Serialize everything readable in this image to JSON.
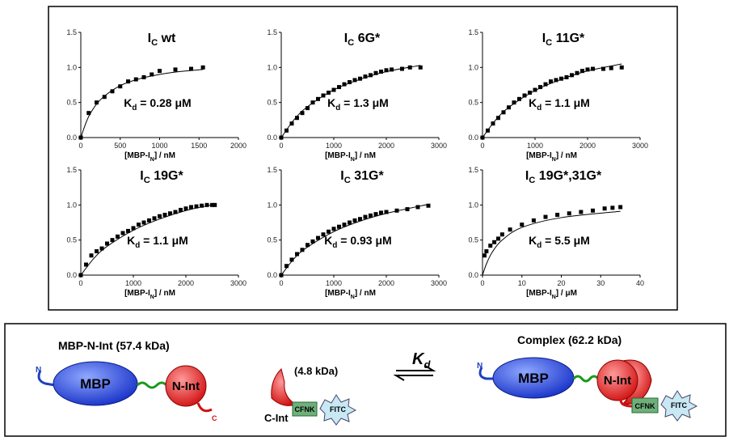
{
  "chart_data": [
    {
      "type": "scatter",
      "title": [
        "I",
        "C",
        " wt"
      ],
      "kd_label": [
        "K",
        "d",
        " = 0.28 μM"
      ],
      "xlabel": [
        "[MBP-I",
        "N",
        "] / nM"
      ],
      "xlim": [
        0,
        2000
      ],
      "xticks": [
        0,
        500,
        1000,
        1500,
        2000
      ],
      "ylim": [
        0,
        1.5
      ],
      "yticks": [
        {
          "value": 0,
          "label": "0.0"
        },
        0.5,
        {
          "value": 1,
          "label": "1.0"
        },
        1.5
      ],
      "points": {
        "x": [
          0,
          100,
          200,
          300,
          400,
          500,
          600,
          700,
          800,
          900,
          1000,
          1200,
          1400,
          1550
        ],
        "y": [
          0,
          0.35,
          0.5,
          0.58,
          0.66,
          0.73,
          0.8,
          0.83,
          0.86,
          0.9,
          0.95,
          0.97,
          0.98,
          1.0
        ]
      },
      "fit": {
        "x": [
          0,
          100,
          250,
          500,
          750,
          1000,
          1250,
          1550
        ],
        "y": [
          0,
          0.3,
          0.54,
          0.74,
          0.84,
          0.9,
          0.94,
          0.97
        ]
      },
      "color": "#000000"
    },
    {
      "type": "scatter",
      "title": [
        "I",
        "C",
        " 6G*"
      ],
      "kd_label": [
        "K",
        "d",
        " = 1.3 μM"
      ],
      "xlabel": [
        "[MBP-I",
        "N",
        "] / nM"
      ],
      "xlim": [
        0,
        3000
      ],
      "xticks": [
        0,
        1000,
        2000,
        3000
      ],
      "ylim": [
        0,
        1.5
      ],
      "yticks": [
        {
          "value": 0,
          "label": "0.0"
        },
        0.5,
        {
          "value": 1,
          "label": "1.0"
        },
        1.5
      ],
      "points": {
        "x": [
          0,
          100,
          200,
          300,
          400,
          500,
          600,
          700,
          800,
          900,
          1000,
          1100,
          1200,
          1300,
          1400,
          1500,
          1600,
          1700,
          1800,
          1900,
          2000,
          2100,
          2300,
          2450,
          2650
        ],
        "y": [
          0,
          0.1,
          0.2,
          0.28,
          0.35,
          0.42,
          0.5,
          0.55,
          0.6,
          0.64,
          0.68,
          0.72,
          0.76,
          0.79,
          0.82,
          0.84,
          0.87,
          0.89,
          0.92,
          0.94,
          0.96,
          0.97,
          0.98,
          1.0,
          1.0
        ]
      },
      "fit": {
        "x": [
          0,
          250,
          500,
          1000,
          1500,
          2000,
          2650
        ],
        "y": [
          0,
          0.26,
          0.44,
          0.68,
          0.83,
          0.94,
          1.03
        ]
      },
      "color": "#000000"
    },
    {
      "type": "scatter",
      "title": [
        "I",
        "C",
        " 11G*"
      ],
      "kd_label": [
        "K",
        "d",
        " = 1.1 μM"
      ],
      "xlabel": [
        "[MBP-I",
        "N",
        "] / nM"
      ],
      "xlim": [
        0,
        3000
      ],
      "xticks": [
        0,
        1000,
        2000,
        3000
      ],
      "ylim": [
        0,
        1.5
      ],
      "yticks": [
        {
          "value": 0,
          "label": "0.0"
        },
        0.5,
        {
          "value": 1,
          "label": "1.0"
        },
        1.5
      ],
      "points": {
        "x": [
          0,
          100,
          200,
          300,
          400,
          500,
          600,
          700,
          800,
          900,
          1000,
          1100,
          1200,
          1300,
          1400,
          1500,
          1600,
          1700,
          1800,
          1900,
          2000,
          2100,
          2300,
          2450,
          2650
        ],
        "y": [
          0,
          0.1,
          0.2,
          0.28,
          0.36,
          0.43,
          0.5,
          0.55,
          0.6,
          0.64,
          0.68,
          0.72,
          0.76,
          0.8,
          0.82,
          0.84,
          0.86,
          0.89,
          0.92,
          0.95,
          0.97,
          0.98,
          0.98,
          0.99,
          1.0
        ]
      },
      "fit": {
        "x": [
          0,
          250,
          500,
          1000,
          1500,
          2000,
          2650
        ],
        "y": [
          0,
          0.25,
          0.43,
          0.67,
          0.83,
          0.95,
          1.05
        ]
      },
      "color": "#000000"
    },
    {
      "type": "scatter",
      "title": [
        "I",
        "C",
        " 19G*"
      ],
      "kd_label": [
        "K",
        "d",
        " = 1.1 μM"
      ],
      "xlabel": [
        "[MBP-I",
        "N",
        "] / nM"
      ],
      "xlim": [
        0,
        3000
      ],
      "xticks": [
        0,
        1000,
        2000,
        3000
      ],
      "ylim": [
        0,
        1.5
      ],
      "yticks": [
        {
          "value": 0,
          "label": "0.0"
        },
        0.5,
        {
          "value": 1,
          "label": "1.0"
        },
        1.5
      ],
      "points": {
        "x": [
          0,
          100,
          200,
          300,
          400,
          500,
          600,
          700,
          800,
          900,
          1000,
          1100,
          1200,
          1300,
          1400,
          1500,
          1600,
          1700,
          1800,
          1900,
          2000,
          2100,
          2200,
          2300,
          2400,
          2500,
          2550
        ],
        "y": [
          0,
          0.15,
          0.28,
          0.34,
          0.38,
          0.45,
          0.5,
          0.55,
          0.6,
          0.63,
          0.67,
          0.72,
          0.75,
          0.78,
          0.81,
          0.84,
          0.86,
          0.88,
          0.9,
          0.93,
          0.95,
          0.97,
          0.98,
          0.99,
          1.0,
          1.0,
          1.0
        ]
      },
      "fit": {
        "x": [
          0,
          250,
          500,
          1000,
          1500,
          2000,
          2550
        ],
        "y": [
          0,
          0.24,
          0.41,
          0.64,
          0.8,
          0.92,
          1.01
        ]
      },
      "color": "#000000"
    },
    {
      "type": "scatter",
      "title": [
        "I",
        "C",
        " 31G*"
      ],
      "kd_label": [
        "K",
        "d",
        " = 0.93 μM"
      ],
      "xlabel": [
        "[MBP-I",
        "N",
        "] / nM"
      ],
      "xlim": [
        0,
        3000
      ],
      "xticks": [
        0,
        1000,
        2000,
        3000
      ],
      "ylim": [
        0,
        1.5
      ],
      "yticks": [
        {
          "value": 0,
          "label": "0.0"
        },
        0.5,
        {
          "value": 1,
          "label": "1.0"
        },
        1.5
      ],
      "points": {
        "x": [
          0,
          100,
          200,
          300,
          400,
          500,
          600,
          700,
          800,
          900,
          1000,
          1100,
          1200,
          1300,
          1400,
          1500,
          1600,
          1700,
          1800,
          1900,
          2000,
          2200,
          2400,
          2600,
          2800
        ],
        "y": [
          0,
          0.13,
          0.22,
          0.3,
          0.36,
          0.43,
          0.48,
          0.53,
          0.58,
          0.62,
          0.66,
          0.69,
          0.72,
          0.75,
          0.78,
          0.8,
          0.83,
          0.85,
          0.87,
          0.89,
          0.9,
          0.92,
          0.94,
          0.97,
          0.99
        ]
      },
      "fit": {
        "x": [
          0,
          250,
          500,
          1000,
          1500,
          2000,
          2800
        ],
        "y": [
          0,
          0.24,
          0.4,
          0.62,
          0.77,
          0.88,
          1.01
        ]
      },
      "color": "#000000"
    },
    {
      "type": "scatter",
      "title": [
        "I",
        "C",
        " 19G*,31G*"
      ],
      "kd_label": [
        "K",
        "d",
        " = 5.5 μM"
      ],
      "xlabel": [
        "[MBP-I",
        "N",
        "] / μM"
      ],
      "xlim": [
        0,
        40
      ],
      "xticks": [
        0,
        10,
        20,
        30,
        40
      ],
      "ylim": [
        0,
        1.5
      ],
      "yticks": [
        {
          "value": 0,
          "label": "0.0"
        },
        0.5,
        {
          "value": 1,
          "label": "1.0"
        },
        1.5
      ],
      "points": {
        "x": [
          0.5,
          1,
          2,
          3,
          4,
          5,
          7,
          10,
          13,
          16,
          19,
          22,
          25,
          28,
          31,
          33,
          35
        ],
        "y": [
          0.28,
          0.34,
          0.42,
          0.47,
          0.52,
          0.58,
          0.65,
          0.72,
          0.78,
          0.83,
          0.86,
          0.88,
          0.9,
          0.92,
          0.95,
          0.96,
          0.97
        ]
      },
      "fit": {
        "x": [
          0,
          1,
          2.5,
          5,
          10,
          20,
          35
        ],
        "y": [
          0,
          0.16,
          0.33,
          0.5,
          0.68,
          0.82,
          0.91
        ]
      },
      "color": "#000000"
    }
  ],
  "diagram": {
    "left_label": "MBP-N-Int (57.4 kDa)",
    "left_n": "N",
    "left_mbp": "MBP",
    "left_nint": "N-Int",
    "left_c": "C",
    "mid_label": "(4.8 kDa)",
    "mid_cint": "C-Int",
    "mid_cfnk": "CFNK",
    "mid_fitc": "FITC",
    "kd": [
      "K",
      "d"
    ],
    "right_label": "Complex (62.2 kDa)",
    "right_n": "N",
    "right_mbp": "MBP",
    "right_nint": "N-Int",
    "right_cfnk": "CFNK",
    "right_fitc": "FITC"
  }
}
